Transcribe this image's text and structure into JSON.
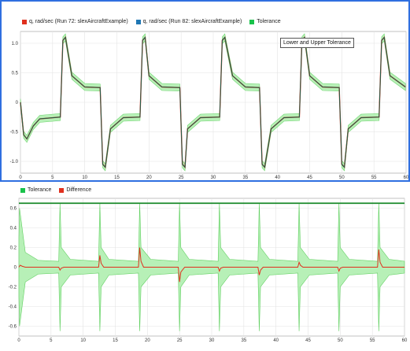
{
  "colors": {
    "run72": "#e0301e",
    "run82": "#1f77b4",
    "tolerance": "#19c24a",
    "difference": "#e0301e",
    "tolerance_band": "#b7f0b7",
    "active_border": "#2f6fe0"
  },
  "top_plot": {
    "legend": [
      {
        "label": "q, rad/sec (Run 72: slexAircraftExample)",
        "color": "#e0301e"
      },
      {
        "label": "q, rad/sec (Run 82: slexAircraftExample)",
        "color": "#1f77b4"
      },
      {
        "label": "Tolerance",
        "color": "#19c24a"
      }
    ],
    "tooltip": "Lower and Upper Tolerance",
    "y_ticks": [
      "1.0",
      "0.5",
      "0",
      "-0.5",
      "-1.0"
    ],
    "x_ticks": [
      "0",
      "5",
      "10",
      "15",
      "20",
      "25",
      "30",
      "35",
      "40",
      "45",
      "50",
      "55",
      "60"
    ]
  },
  "bottom_plot": {
    "legend": [
      {
        "label": "Tolerance",
        "color": "#19c24a"
      },
      {
        "label": "Difference",
        "color": "#e0301e"
      }
    ],
    "y_ticks": [
      "0.6",
      "0.4",
      "0.2",
      "0",
      "-0.2",
      "-0.4",
      "-0.6"
    ],
    "x_ticks": [
      "0",
      "5",
      "10",
      "15",
      "20",
      "25",
      "30",
      "35",
      "40",
      "45",
      "50",
      "55",
      "60"
    ]
  },
  "chart_data": [
    {
      "type": "line",
      "xlim": [
        0,
        60
      ],
      "ylim": [
        -1.2,
        1.2
      ],
      "grid": true,
      "legend_placement": "top-left",
      "series": [
        {
          "name": "q, rad/sec (Run 72: slexAircraftExample)",
          "x": [
            0,
            0.5,
            1,
            2,
            3,
            6.2,
            6.6,
            7,
            8,
            10,
            12.4,
            12.8,
            13.2,
            14,
            16,
            18.6,
            19,
            19.4,
            20,
            22,
            24.8,
            25.2,
            25.6,
            26,
            28,
            31,
            31.4,
            31.8,
            33,
            35,
            37.2,
            37.6,
            38,
            39,
            41,
            43.4,
            43.8,
            44.2,
            45,
            47,
            49.6,
            50,
            50.4,
            51,
            53,
            55.8,
            56.2,
            56.6,
            57.5,
            59.9
          ],
          "y": [
            0,
            -0.55,
            -0.62,
            -0.4,
            -0.28,
            -0.25,
            1.05,
            1.1,
            0.45,
            0.26,
            0.25,
            -1.05,
            -1.1,
            -0.45,
            -0.26,
            -0.25,
            1.05,
            1.1,
            0.45,
            0.26,
            0.25,
            -1.05,
            -1.1,
            -0.45,
            -0.26,
            -0.25,
            1.05,
            1.1,
            0.45,
            0.26,
            0.25,
            -1.05,
            -1.1,
            -0.45,
            -0.26,
            -0.25,
            1.05,
            1.1,
            0.45,
            0.26,
            0.25,
            -1.05,
            -1.1,
            -0.45,
            -0.26,
            -0.25,
            1.05,
            1.1,
            0.45,
            0.26
          ]
        },
        {
          "name": "q, rad/sec (Run 82: slexAircraftExample)",
          "x": [
            0,
            0.5,
            1,
            2,
            3,
            6.2,
            6.6,
            7,
            8,
            10,
            12.4,
            12.8,
            13.2,
            14,
            16,
            18.6,
            19,
            19.4,
            20,
            22,
            24.8,
            25.2,
            25.6,
            26,
            28,
            31,
            31.4,
            31.8,
            33,
            35,
            37.2,
            37.6,
            38,
            39,
            41,
            43.4,
            43.8,
            44.2,
            45,
            47,
            49.6,
            50,
            50.4,
            51,
            53,
            55.8,
            56.2,
            56.6,
            57.5,
            59.9
          ],
          "y": [
            0,
            -0.55,
            -0.62,
            -0.4,
            -0.28,
            -0.25,
            1.05,
            1.1,
            0.45,
            0.26,
            0.25,
            -1.05,
            -1.1,
            -0.45,
            -0.26,
            -0.25,
            1.05,
            1.1,
            0.45,
            0.26,
            0.25,
            -1.05,
            -1.1,
            -0.45,
            -0.26,
            -0.25,
            1.05,
            1.1,
            0.45,
            0.26,
            0.25,
            -1.05,
            -1.1,
            -0.45,
            -0.26,
            -0.25,
            1.05,
            1.1,
            0.45,
            0.26,
            0.25,
            -1.05,
            -1.1,
            -0.45,
            -0.26,
            -0.25,
            1.05,
            1.1,
            0.45,
            0.26
          ]
        },
        {
          "name": "Tolerance",
          "band_halfwidth": 0.06
        }
      ]
    },
    {
      "type": "line",
      "xlim": [
        0,
        60
      ],
      "ylim": [
        -0.7,
        0.7
      ],
      "grid": true,
      "legend_placement": "top-left",
      "series": [
        {
          "name": "Tolerance",
          "x": [
            0,
            0.1,
            1,
            3,
            6.2,
            6.4,
            6.6,
            8,
            12.4,
            12.6,
            12.8,
            14,
            18.6,
            18.8,
            19,
            20.5,
            24.8,
            25,
            25.2,
            26.5,
            31,
            31.2,
            31.4,
            32.8,
            37.2,
            37.4,
            37.6,
            39,
            43.4,
            43.6,
            43.8,
            45.2,
            49.6,
            49.8,
            50,
            51.4,
            55.8,
            56,
            56.2,
            57.6,
            60
          ],
          "y": [
            0.3,
            0.6,
            0.15,
            0.07,
            0.06,
            0.65,
            0.2,
            0.08,
            0.06,
            0.65,
            0.2,
            0.08,
            0.06,
            0.65,
            0.2,
            0.08,
            0.06,
            0.65,
            0.2,
            0.08,
            0.06,
            0.65,
            0.2,
            0.08,
            0.06,
            0.65,
            0.2,
            0.08,
            0.06,
            0.65,
            0.2,
            0.08,
            0.06,
            0.65,
            0.2,
            0.08,
            0.06,
            0.65,
            0.2,
            0.08,
            0.06
          ],
          "symmetric": true,
          "upper_limit_line": 0.65
        },
        {
          "name": "Difference",
          "x": [
            0,
            0.2,
            0.5,
            1,
            6.2,
            6.4,
            6.6,
            7,
            12.4,
            12.6,
            12.8,
            13.2,
            18.6,
            18.8,
            19,
            19.4,
            24.8,
            25,
            25.2,
            25.8,
            31,
            31.2,
            31.4,
            31.8,
            37.2,
            37.4,
            37.6,
            38,
            43.4,
            43.6,
            43.8,
            44.2,
            49.6,
            49.8,
            50,
            50.4,
            55.8,
            56,
            56.2,
            56.6,
            60
          ],
          "y": [
            0,
            0.02,
            0.01,
            0,
            0,
            -0.03,
            -0.01,
            0,
            0,
            0.12,
            0.04,
            0,
            0,
            0.2,
            0.06,
            0,
            0,
            -0.15,
            -0.05,
            0,
            0,
            -0.04,
            -0.01,
            0,
            0,
            -0.08,
            -0.03,
            0,
            0,
            0.05,
            0.02,
            0,
            0,
            -0.04,
            -0.01,
            0,
            0,
            0.18,
            0.05,
            0,
            0
          ]
        }
      ]
    }
  ]
}
